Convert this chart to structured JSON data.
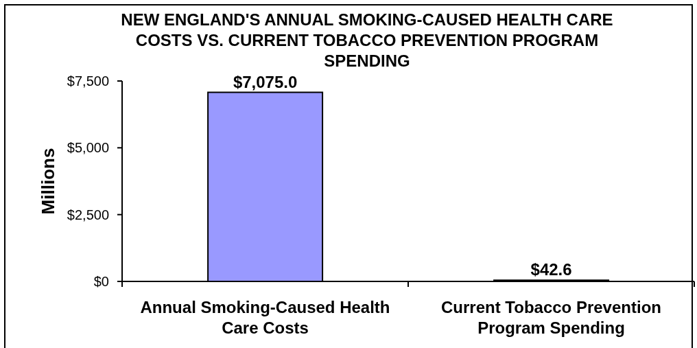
{
  "chart_data": {
    "type": "bar",
    "title": "NEW ENGLAND'S ANNUAL SMOKING-CAUSED HEALTH CARE COSTS VS. CURRENT TOBACCO PREVENTION PROGRAM SPENDING",
    "ylabel": "Millions",
    "categories": [
      "Annual Smoking-Caused Health Care Costs",
      "Current Tobacco Prevention Program Spending"
    ],
    "values": [
      7075.0,
      42.6
    ],
    "color": "#9999ff",
    "value_labels": [
      "$7,075.0",
      "$42.6"
    ],
    "ylim": [
      0,
      7500
    ],
    "yticks": [
      {
        "value": 0,
        "label": "$0"
      },
      {
        "value": 2500,
        "label": "$2,500"
      },
      {
        "value": 5000,
        "label": "$5,000"
      },
      {
        "value": 7500,
        "label": "$7,500"
      }
    ]
  }
}
